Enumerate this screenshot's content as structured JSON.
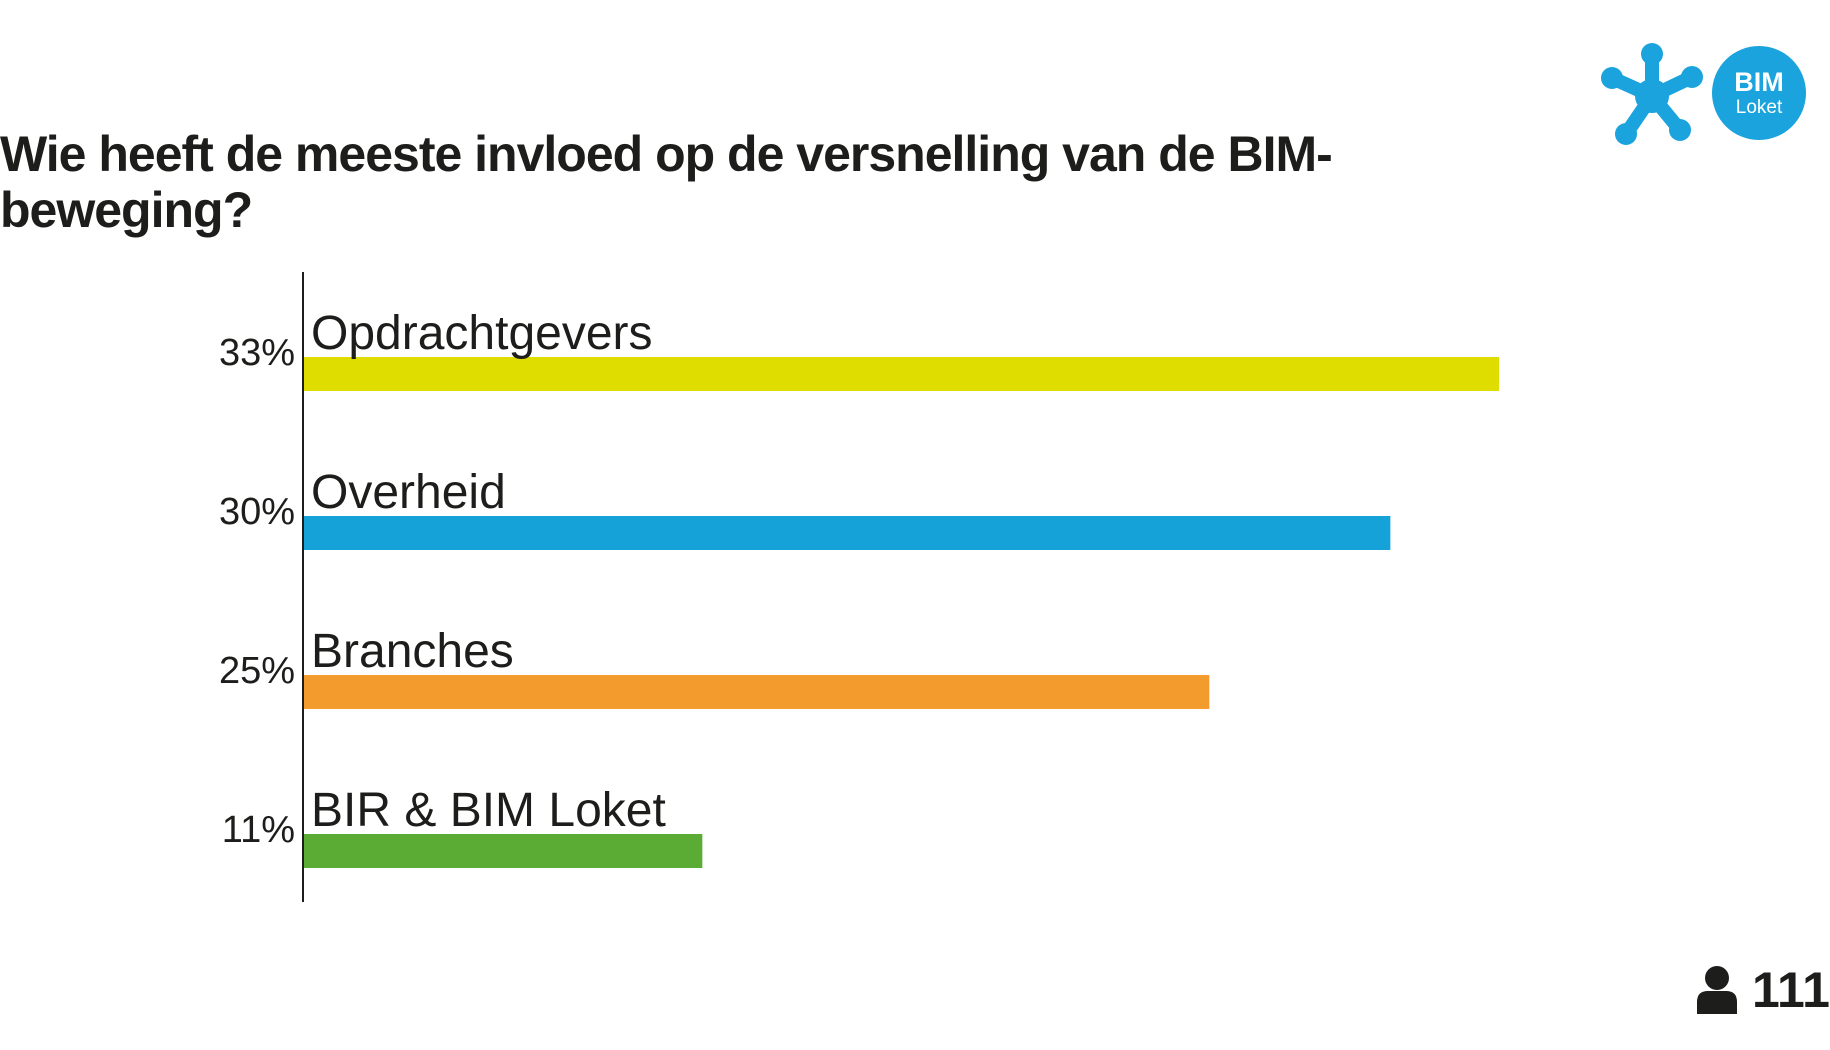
{
  "slide": {
    "title": "Wie heeft de meeste invloed op de versnelling van de BIM-beweging?"
  },
  "logo": {
    "word1": "BIM",
    "word2": "Loket",
    "color": "#1aa3dd",
    "icon": "asterisk-logo-icon"
  },
  "footer": {
    "respondent_icon": "person-icon",
    "respondent_count": "111"
  },
  "chart_data": {
    "type": "bar",
    "orientation": "horizontal",
    "title": "Wie heeft de meeste invloed op de versnelling van de BIM-beweging?",
    "xlabel": "",
    "ylabel": "",
    "unit": "%",
    "categories": [
      "Opdrachtgevers",
      "Overheid",
      "Branches",
      "BIR & BIM Loket"
    ],
    "values": [
      33,
      30,
      25,
      11
    ],
    "value_labels": [
      "33%",
      "30%",
      "25%",
      "11%"
    ],
    "colors": [
      "#dfdc00",
      "#14a2d9",
      "#f39c2d",
      "#5aac35"
    ],
    "xlim": [
      0,
      33
    ],
    "grid": false,
    "legend": "none"
  }
}
